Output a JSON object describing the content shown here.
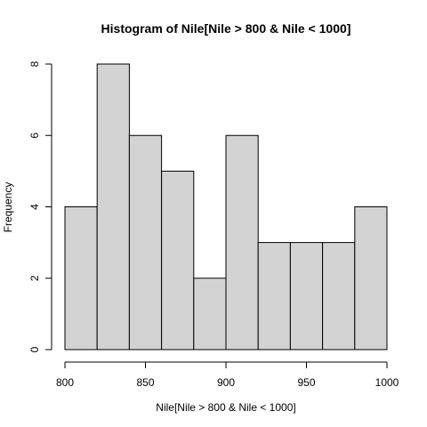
{
  "chart_data": {
    "type": "histogram",
    "title": "Histogram of Nile[Nile > 800 & Nile < 1000]",
    "xlabel": "Nile[Nile > 800 & Nile < 1000]",
    "ylabel": "Frequency",
    "bins": [
      {
        "start": 800,
        "end": 820,
        "count": 4
      },
      {
        "start": 820,
        "end": 840,
        "count": 8
      },
      {
        "start": 840,
        "end": 860,
        "count": 6
      },
      {
        "start": 860,
        "end": 880,
        "count": 5
      },
      {
        "start": 880,
        "end": 900,
        "count": 2
      },
      {
        "start": 900,
        "end": 920,
        "count": 6
      },
      {
        "start": 920,
        "end": 940,
        "count": 3
      },
      {
        "start": 940,
        "end": 960,
        "count": 3
      },
      {
        "start": 960,
        "end": 980,
        "count": 3
      },
      {
        "start": 980,
        "end": 1000,
        "count": 4
      }
    ],
    "xlim": [
      800,
      1000
    ],
    "ylim": [
      0,
      8
    ],
    "x_ticks": [
      800,
      850,
      900,
      950,
      1000
    ],
    "y_ticks": [
      0,
      2,
      4,
      6,
      8
    ],
    "bar_fill": "#d3d3d3",
    "bar_stroke": "#000000"
  }
}
